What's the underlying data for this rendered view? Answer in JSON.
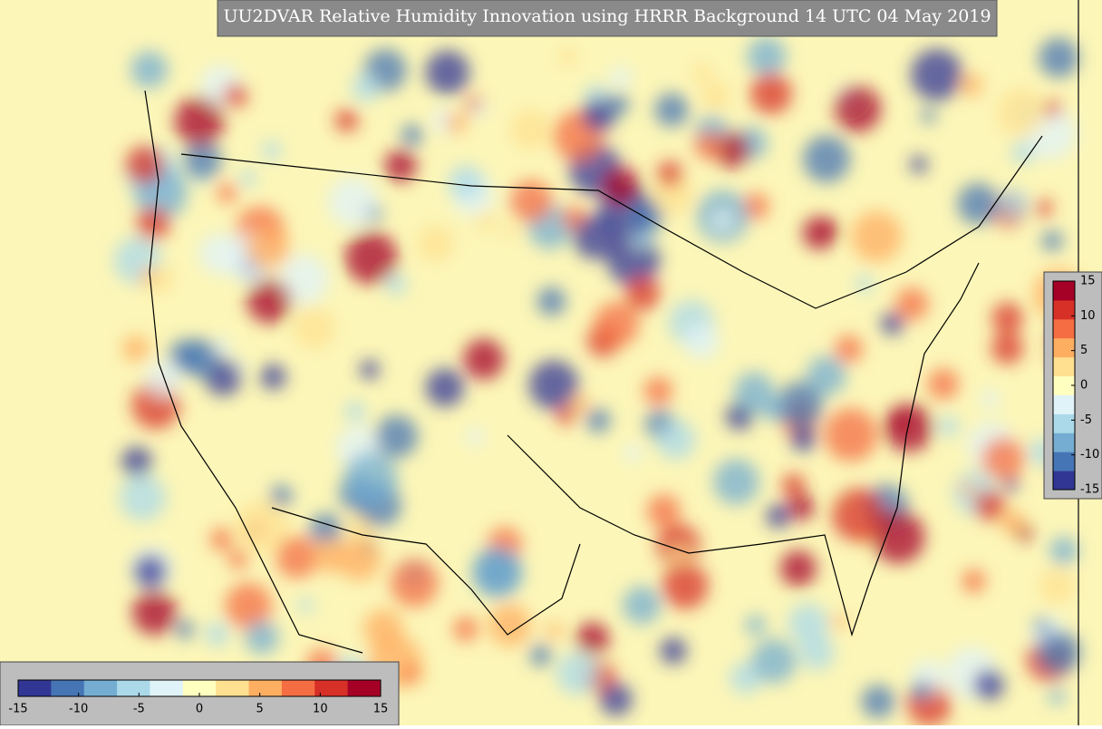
{
  "title": "UU2DVAR Relative Humidity Innovation using HRRR Background 14 UTC 04 May 2019",
  "colorbar": {
    "lim": [
      -15,
      15
    ],
    "colors": [
      "#313695",
      "#4575b4",
      "#74add1",
      "#abd9e9",
      "#e0f3f8",
      "#ffffbf",
      "#fee090",
      "#fdae61",
      "#f46d43",
      "#d73027",
      "#a50026"
    ],
    "ticks": [
      -15,
      -10,
      -5,
      0,
      5,
      10,
      15
    ]
  }
}
